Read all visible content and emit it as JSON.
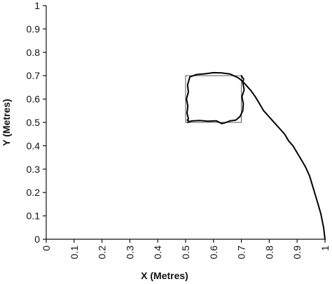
{
  "chart_data": {
    "type": "line",
    "title": "",
    "xlabel": "X  (Metres)",
    "ylabel": "Y  (Metres)",
    "xlim": [
      0,
      1
    ],
    "ylim": [
      0,
      1
    ],
    "grid": false,
    "legend": "none",
    "x_ticks": [
      "0",
      "0.1",
      "0.2",
      "0.3",
      "0.4",
      "0.5",
      "0.6",
      "0.7",
      "0.8",
      "0.9",
      "1"
    ],
    "y_ticks": [
      "0",
      "0.1",
      "0.2",
      "0.3",
      "0.4",
      "0.5",
      "0.6",
      "0.7",
      "0.8",
      "0.9",
      "1"
    ],
    "reference_square": {
      "x": [
        0.5,
        0.7
      ],
      "y": [
        0.5,
        0.7
      ]
    },
    "series": [
      {
        "x": [
          1.0,
          0.995,
          0.99,
          0.985,
          0.975,
          0.965,
          0.955,
          0.945,
          0.93,
          0.915,
          0.9,
          0.885,
          0.87,
          0.855,
          0.84,
          0.825,
          0.81,
          0.795,
          0.78,
          0.765,
          0.75,
          0.735,
          0.72,
          0.705,
          0.69,
          0.66,
          0.63,
          0.6,
          0.57,
          0.54,
          0.515,
          0.507,
          0.51,
          0.503,
          0.508,
          0.505,
          0.51,
          0.506,
          0.512,
          0.508,
          0.52,
          0.55,
          0.58,
          0.61,
          0.63,
          0.645,
          0.66,
          0.68,
          0.695,
          0.705,
          0.707,
          0.702,
          0.71,
          0.705,
          0.708,
          0.703,
          0.7
        ],
        "y": [
          0.0,
          0.05,
          0.08,
          0.11,
          0.15,
          0.19,
          0.23,
          0.27,
          0.31,
          0.34,
          0.37,
          0.4,
          0.42,
          0.45,
          0.47,
          0.49,
          0.51,
          0.53,
          0.55,
          0.58,
          0.61,
          0.635,
          0.655,
          0.675,
          0.69,
          0.707,
          0.712,
          0.713,
          0.708,
          0.705,
          0.695,
          0.66,
          0.63,
          0.6,
          0.57,
          0.54,
          0.515,
          0.51,
          0.505,
          0.5,
          0.506,
          0.508,
          0.505,
          0.507,
          0.495,
          0.5,
          0.507,
          0.51,
          0.525,
          0.55,
          0.58,
          0.61,
          0.64,
          0.67,
          0.685,
          0.695,
          0.7
        ]
      }
    ]
  }
}
